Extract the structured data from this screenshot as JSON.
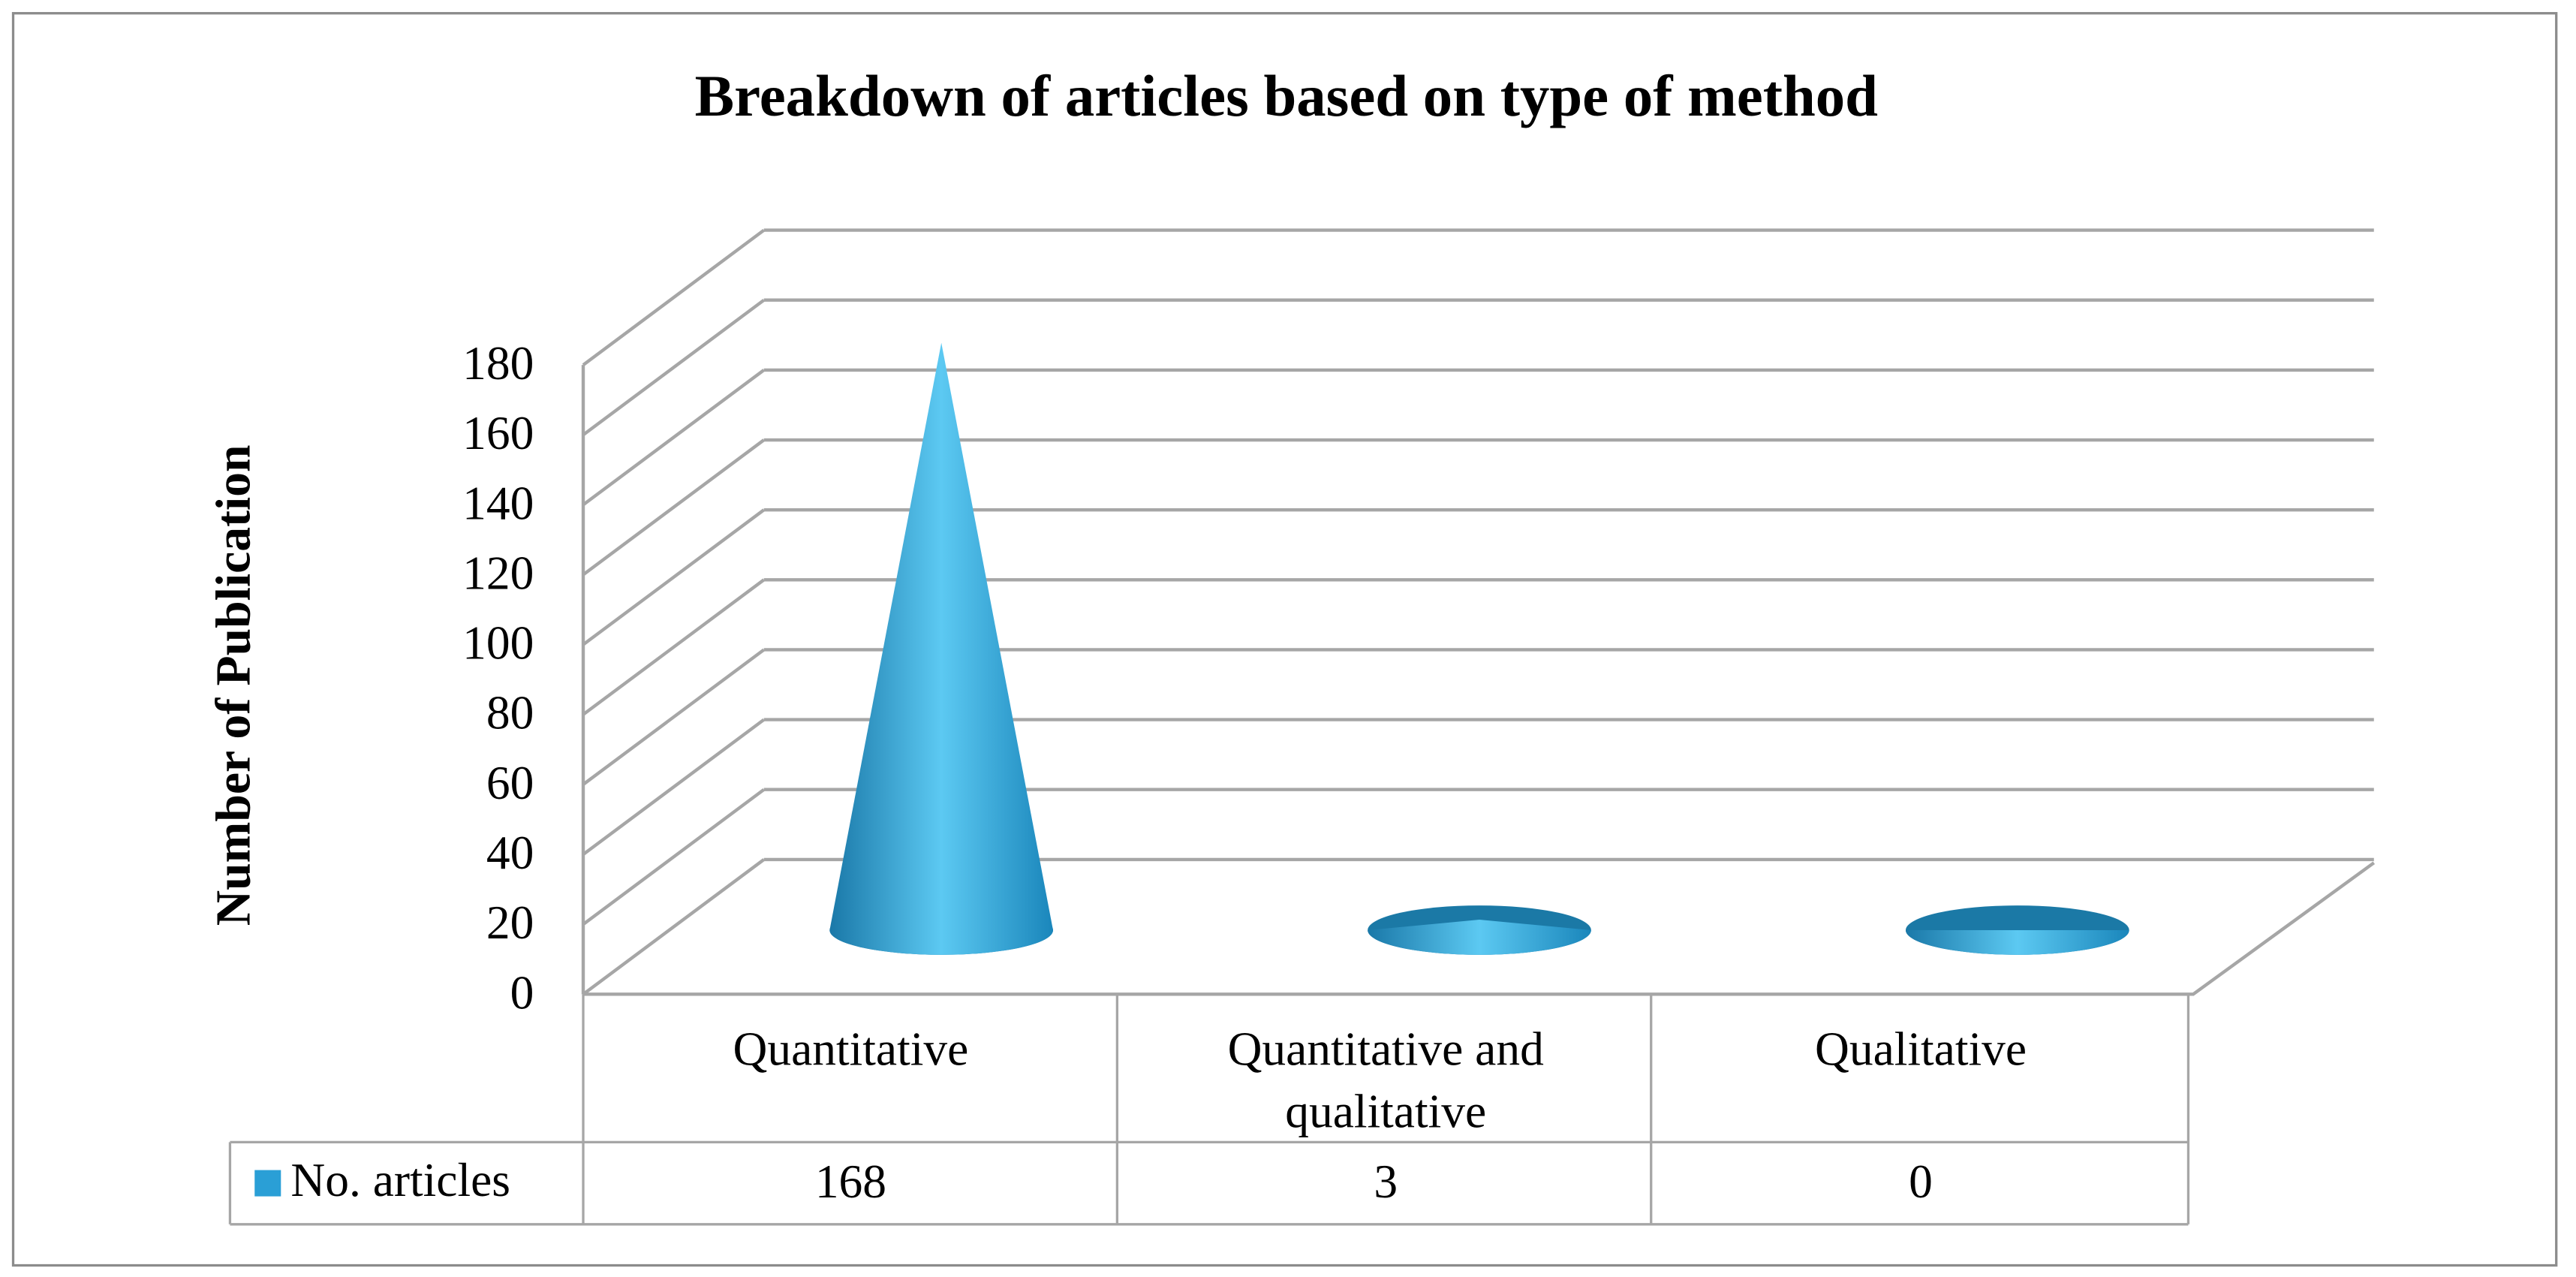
{
  "chart_data": {
    "type": "cone",
    "title": "Breakdown of articles based on type of method",
    "y_label": "Number of Publication",
    "categories": [
      "Quantitative",
      "Quantitative and qualitative",
      "Qualitative"
    ],
    "series": [
      {
        "name": "No. articles",
        "color": "#2a9fd6",
        "values": [
          168,
          3,
          0
        ]
      }
    ],
    "ylim": [
      0,
      180
    ],
    "yticks": [
      0,
      20,
      40,
      60,
      80,
      100,
      120,
      140,
      160,
      180
    ],
    "grid": true
  }
}
